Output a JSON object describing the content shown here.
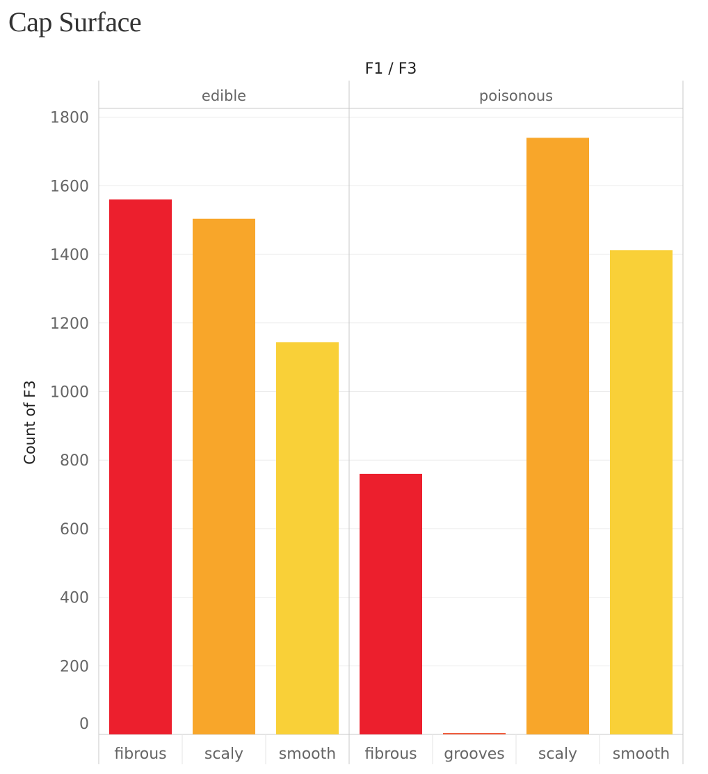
{
  "chart_data": {
    "type": "bar",
    "title": "Cap Surface",
    "column_header": "F1 / F3",
    "ylabel": "Count of F3",
    "ylim": [
      0,
      1800
    ],
    "yticks": [
      0,
      200,
      400,
      600,
      800,
      1000,
      1200,
      1400,
      1600,
      1800
    ],
    "grid": true,
    "colors": {
      "fibrous": "#ec1f2d",
      "grooves": "#f05a3a",
      "scaly": "#f8a62a",
      "smooth": "#f9d038"
    },
    "panels": [
      {
        "name": "edible",
        "categories": [
          "fibrous",
          "scaly",
          "smooth"
        ],
        "values": [
          1560,
          1504,
          1144
        ]
      },
      {
        "name": "poisonous",
        "categories": [
          "fibrous",
          "grooves",
          "scaly",
          "smooth"
        ],
        "values": [
          760,
          4,
          1740,
          1412
        ]
      }
    ]
  }
}
